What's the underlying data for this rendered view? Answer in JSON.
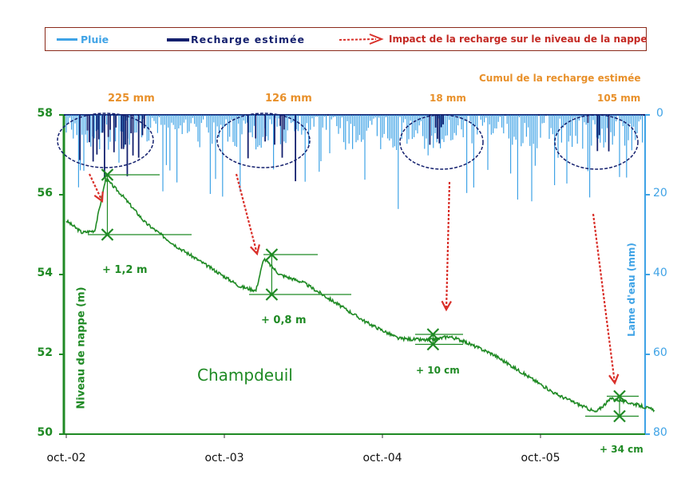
{
  "legend": {
    "rain": "Pluie",
    "recharge": "Recharge estimée",
    "impact": "Impact de la recharge sur le niveau de la nappe"
  },
  "colors": {
    "rain": "#3fa3e6",
    "recharge": "#14206e",
    "level": "#1f8a24",
    "impact": "#d9302a",
    "cumul": "#e8902a"
  },
  "chart_data": {
    "type": "line",
    "title": "",
    "site_label": "Champdeuil",
    "cumul_title": "Cumul de la recharge estimée",
    "ylabel_left": "Niveau de nappe (m)",
    "ylabel_right": "Lame d'eau (mm)",
    "ylim_left": [
      50,
      58
    ],
    "ylim_right": [
      0,
      80
    ],
    "right_axis_inverted": true,
    "yticks_left": [
      50,
      52,
      54,
      56,
      58
    ],
    "yticks_right": [
      0,
      20,
      40,
      60,
      80
    ],
    "xticks": [
      "oct.-02",
      "oct.-03",
      "oct.-04",
      "oct.-05"
    ],
    "cumul_recharge": [
      {
        "label": "225 mm"
      },
      {
        "label": "126 mm"
      },
      {
        "label": "18 mm"
      },
      {
        "label": "105 mm"
      }
    ],
    "impacts": [
      {
        "label": "+ 1,2 m",
        "from": 55.0,
        "to": 56.5
      },
      {
        "label": "+ 0,8 m",
        "from": 53.5,
        "to": 54.5
      },
      {
        "label": "+ 10 cm",
        "from": 52.25,
        "to": 52.5
      },
      {
        "label": "+ 34 cm",
        "from": 50.45,
        "to": 50.95
      }
    ],
    "series": [
      {
        "name": "Niveau de nappe",
        "x_years": [
          2002.0,
          2002.1,
          2002.18,
          2002.25,
          2002.35,
          2002.5,
          2002.7,
          2002.9,
          2003.1,
          2003.2,
          2003.25,
          2003.35,
          2003.5,
          2003.7,
          2003.9,
          2004.1,
          2004.3,
          2004.42,
          2004.5,
          2004.7,
          2004.9,
          2005.1,
          2005.35,
          2005.45,
          2005.6,
          2005.72
        ],
        "values": [
          55.35,
          55.05,
          55.1,
          56.4,
          56.0,
          55.3,
          54.7,
          54.2,
          53.7,
          53.6,
          54.4,
          54.0,
          53.8,
          53.3,
          52.8,
          52.4,
          52.35,
          52.45,
          52.35,
          52.0,
          51.5,
          51.0,
          50.55,
          50.9,
          50.75,
          50.6
        ]
      },
      {
        "name": "Pluie"
      },
      {
        "name": "Recharge estimée"
      }
    ]
  }
}
